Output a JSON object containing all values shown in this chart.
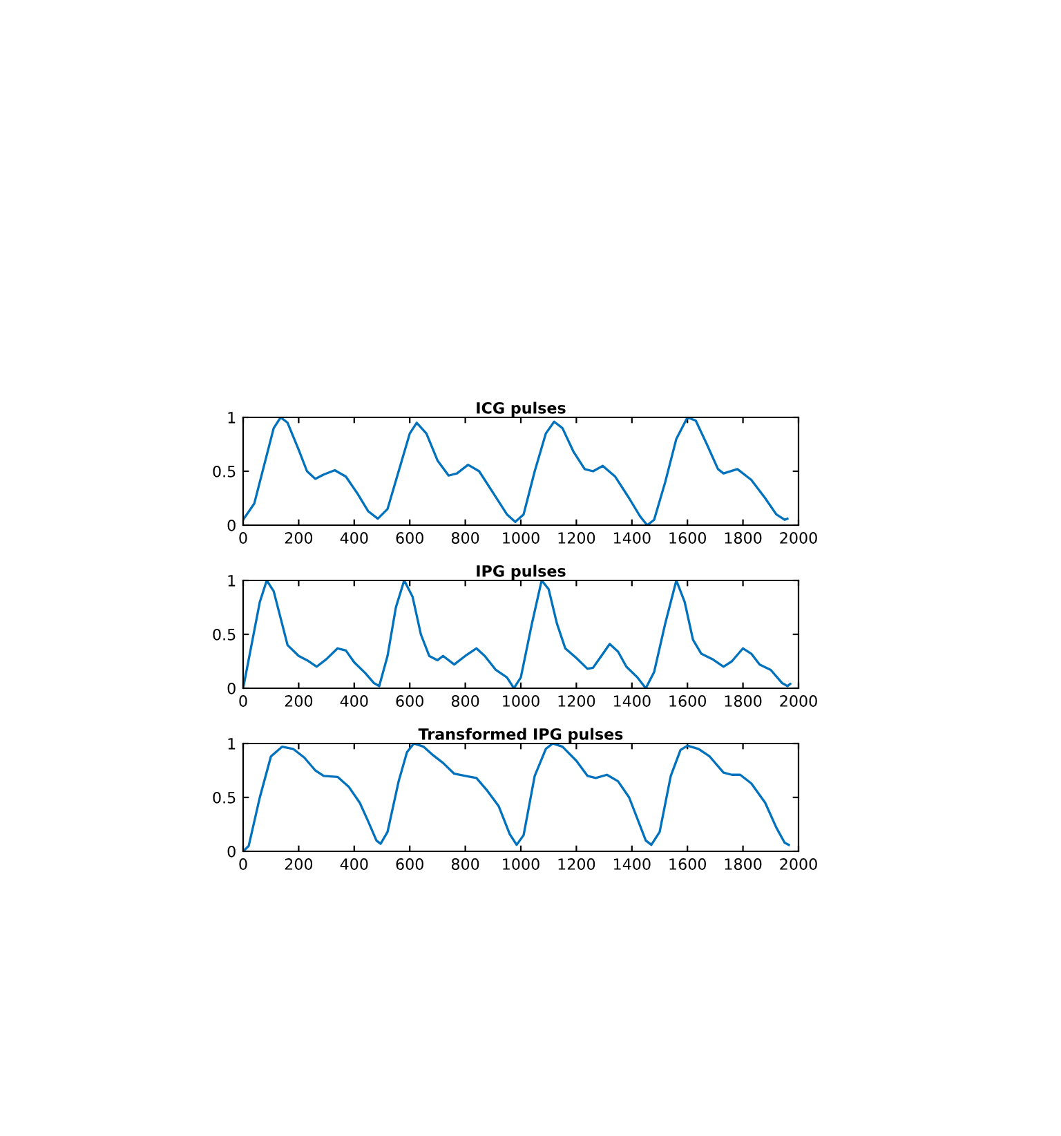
{
  "chart_data": [
    {
      "type": "line",
      "title": "ICG pulses",
      "xlim": [
        0,
        2000
      ],
      "ylim": [
        0,
        1
      ],
      "xticks": [
        0,
        200,
        400,
        600,
        800,
        1000,
        1200,
        1400,
        1600,
        1800,
        2000
      ],
      "yticks": [
        0,
        0.5,
        1
      ],
      "series": [
        {
          "color": "#0072bd",
          "x": [
            0,
            40,
            80,
            110,
            135,
            160,
            200,
            230,
            260,
            290,
            330,
            370,
            410,
            450,
            485,
            520,
            560,
            600,
            625,
            660,
            700,
            740,
            770,
            810,
            850,
            900,
            950,
            980,
            1010,
            1050,
            1090,
            1120,
            1150,
            1190,
            1230,
            1260,
            1295,
            1340,
            1390,
            1430,
            1455,
            1480,
            1520,
            1560,
            1600,
            1630,
            1670,
            1710,
            1730,
            1780,
            1830,
            1880,
            1920,
            1950,
            1960
          ],
          "values": [
            0.05,
            0.2,
            0.6,
            0.9,
            1.0,
            0.95,
            0.7,
            0.5,
            0.43,
            0.47,
            0.51,
            0.45,
            0.3,
            0.13,
            0.06,
            0.15,
            0.5,
            0.85,
            0.95,
            0.85,
            0.6,
            0.46,
            0.48,
            0.56,
            0.5,
            0.3,
            0.1,
            0.03,
            0.1,
            0.5,
            0.85,
            0.96,
            0.9,
            0.68,
            0.52,
            0.5,
            0.55,
            0.45,
            0.25,
            0.08,
            0.0,
            0.05,
            0.4,
            0.8,
            1.0,
            0.97,
            0.75,
            0.52,
            0.48,
            0.52,
            0.42,
            0.25,
            0.1,
            0.05,
            0.06
          ]
        }
      ]
    },
    {
      "type": "line",
      "title": "IPG pulses",
      "xlim": [
        0,
        2000
      ],
      "ylim": [
        0,
        1
      ],
      "xticks": [
        0,
        200,
        400,
        600,
        800,
        1000,
        1200,
        1400,
        1600,
        1800,
        2000
      ],
      "yticks": [
        0,
        0.5,
        1
      ],
      "series": [
        {
          "color": "#0072bd",
          "x": [
            0,
            30,
            60,
            85,
            110,
            140,
            160,
            200,
            230,
            265,
            300,
            340,
            370,
            400,
            440,
            470,
            490,
            520,
            550,
            580,
            610,
            640,
            670,
            700,
            720,
            760,
            800,
            840,
            870,
            910,
            950,
            975,
            1000,
            1040,
            1075,
            1100,
            1130,
            1160,
            1200,
            1240,
            1260,
            1290,
            1320,
            1350,
            1380,
            1420,
            1450,
            1480,
            1520,
            1560,
            1590,
            1620,
            1650,
            1690,
            1730,
            1760,
            1800,
            1830,
            1860,
            1900,
            1940,
            1960,
            1970
          ],
          "values": [
            0.0,
            0.4,
            0.8,
            1.0,
            0.9,
            0.6,
            0.4,
            0.3,
            0.26,
            0.2,
            0.27,
            0.37,
            0.35,
            0.24,
            0.14,
            0.05,
            0.02,
            0.3,
            0.75,
            1.0,
            0.85,
            0.5,
            0.3,
            0.26,
            0.3,
            0.22,
            0.3,
            0.37,
            0.3,
            0.17,
            0.1,
            0.0,
            0.1,
            0.6,
            1.0,
            0.92,
            0.6,
            0.37,
            0.28,
            0.18,
            0.19,
            0.3,
            0.41,
            0.34,
            0.2,
            0.1,
            0.0,
            0.15,
            0.6,
            1.0,
            0.8,
            0.45,
            0.32,
            0.27,
            0.2,
            0.25,
            0.37,
            0.32,
            0.22,
            0.17,
            0.05,
            0.02,
            0.04
          ]
        }
      ]
    },
    {
      "type": "line",
      "title": "Transformed IPG pulses",
      "xlim": [
        0,
        2000
      ],
      "ylim": [
        0,
        1
      ],
      "xticks": [
        0,
        200,
        400,
        600,
        800,
        1000,
        1200,
        1400,
        1600,
        1800,
        2000
      ],
      "yticks": [
        0,
        0.5,
        1
      ],
      "series": [
        {
          "color": "#0072bd",
          "x": [
            0,
            20,
            60,
            100,
            140,
            180,
            220,
            260,
            290,
            340,
            380,
            420,
            450,
            480,
            495,
            520,
            560,
            590,
            615,
            650,
            680,
            720,
            760,
            800,
            840,
            880,
            920,
            960,
            985,
            1010,
            1050,
            1090,
            1115,
            1150,
            1200,
            1240,
            1270,
            1310,
            1350,
            1390,
            1420,
            1450,
            1470,
            1500,
            1540,
            1575,
            1600,
            1640,
            1680,
            1730,
            1760,
            1790,
            1830,
            1880,
            1920,
            1950,
            1965
          ],
          "values": [
            0.0,
            0.05,
            0.5,
            0.88,
            0.97,
            0.95,
            0.87,
            0.75,
            0.7,
            0.69,
            0.6,
            0.45,
            0.28,
            0.1,
            0.07,
            0.18,
            0.65,
            0.92,
            1.0,
            0.97,
            0.9,
            0.82,
            0.72,
            0.7,
            0.68,
            0.56,
            0.42,
            0.16,
            0.06,
            0.15,
            0.7,
            0.95,
            1.0,
            0.97,
            0.84,
            0.7,
            0.68,
            0.71,
            0.65,
            0.5,
            0.3,
            0.1,
            0.06,
            0.18,
            0.7,
            0.94,
            0.98,
            0.95,
            0.88,
            0.73,
            0.71,
            0.71,
            0.63,
            0.45,
            0.22,
            0.08,
            0.06
          ]
        }
      ]
    }
  ]
}
